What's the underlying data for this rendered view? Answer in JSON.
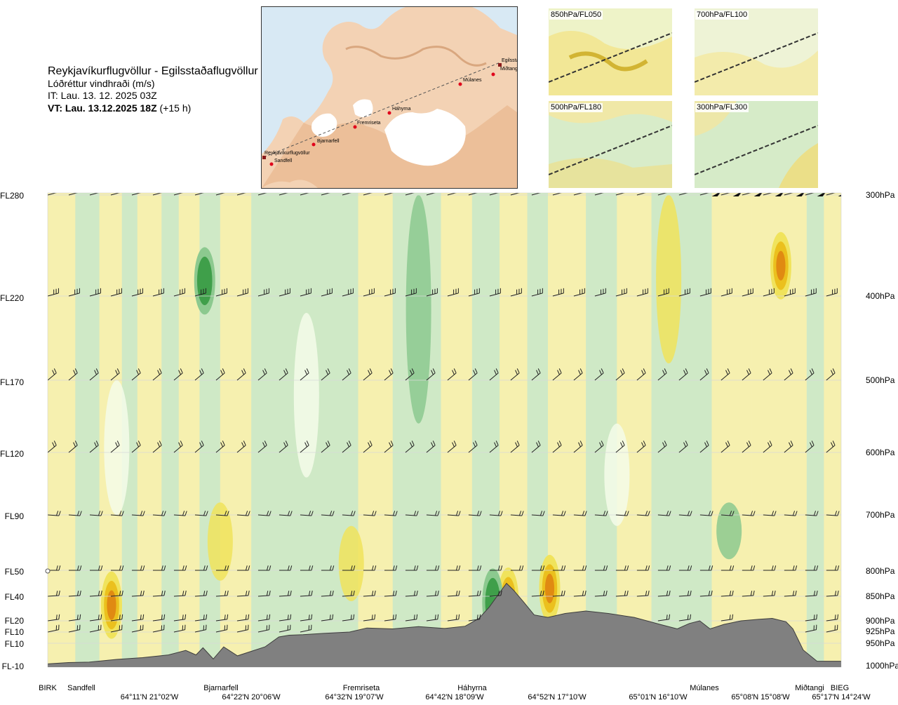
{
  "header": {
    "route": "Reykjavíkurflugvöllur - Egilsstaðaflugvöllur",
    "variable": "Lóðréttur vindhraði (m/s)",
    "issue_time": "IT: Lau. 13. 12. 2025 03Z",
    "valid_prefix": "VT: Lau. 13.12.2025 18Z",
    "valid_suffix": " (+15 h)"
  },
  "route_map": {
    "points": [
      {
        "name": "Reykjavíkurflugvöllur"
      },
      {
        "name": "Sandfell"
      },
      {
        "name": "Bjarnarfell"
      },
      {
        "name": "Fremriseta"
      },
      {
        "name": "Háhyrna"
      },
      {
        "name": "Múlanes"
      },
      {
        "name": "Egilsstaðir"
      },
      {
        "name": "Miðtangi"
      }
    ]
  },
  "level_panels": [
    {
      "label": "850hPa/FL050"
    },
    {
      "label": "700hPa/FL100"
    },
    {
      "label": "500hPa/FL180"
    },
    {
      "label": "300hPa/FL300"
    }
  ],
  "chart_data": {
    "type": "heatmap",
    "title": "Lóðréttur vindhraði (m/s)",
    "xlabel": "",
    "ylabel": "",
    "flight_levels": [
      "FL280",
      "FL220",
      "FL170",
      "FL120",
      "FL90",
      "FL50",
      "FL40",
      "FL20",
      "FL10",
      "FL10",
      "FL-10"
    ],
    "pressure_levels": [
      "300hPa",
      "400hPa",
      "500hPa",
      "600hPa",
      "700hPa",
      "800hPa",
      "850hPa",
      "900hPa",
      "925hPa",
      "950hPa",
      "1000hPa"
    ],
    "pressure_hpa": [
      300,
      400,
      500,
      600,
      700,
      800,
      850,
      900,
      925,
      950,
      1000
    ],
    "x_range_km": [
      0,
      460
    ],
    "locations": [
      {
        "name": "BIRK",
        "km": 0
      },
      {
        "name": "Sandfell",
        "km": 20
      },
      {
        "name": "Bjarnarfell",
        "km": 96
      },
      {
        "name": "Fremriseta",
        "km": 182
      },
      {
        "name": "Háhyrna",
        "km": 264
      },
      {
        "name": "Múlanes",
        "km": 395
      },
      {
        "name": "Miðtangi",
        "km": 443
      },
      {
        "name": "BIEG",
        "km": 458
      }
    ],
    "coordinates": [
      {
        "label": "64°11'N 21°02'W",
        "km": 60
      },
      {
        "label": "64°22'N 20°06'W",
        "km": 121
      },
      {
        "label": "64°32'N 19°07'W",
        "km": 181
      },
      {
        "label": "64°42'N 18°09'W",
        "km": 241
      },
      {
        "label": "64°52'N 17°10'W",
        "km": 302
      },
      {
        "label": "65°01'N 16°10'W",
        "km": 362
      },
      {
        "label": "65°08'N 15°08'W",
        "km": 423
      },
      {
        "label": "65°17'N 14°24'W",
        "km": 460
      }
    ],
    "terrain_profile": {
      "km": [
        0,
        12,
        24,
        40,
        55,
        70,
        80,
        86,
        90,
        96,
        102,
        110,
        118,
        126,
        134,
        140,
        148,
        160,
        175,
        185,
        200,
        215,
        230,
        242,
        250,
        256,
        262,
        266,
        270,
        276,
        282,
        290,
        300,
        312,
        325,
        340,
        355,
        365,
        372,
        378,
        384,
        392,
        402,
        412,
        420,
        428,
        432,
        438,
        446,
        460
      ],
      "elevation_hpa": [
        996,
        993,
        992,
        986,
        982,
        976,
        966,
        976,
        960,
        985,
        958,
        978,
        968,
        958,
        936,
        932,
        931,
        928,
        925,
        916,
        918,
        913,
        917,
        912,
        895,
        872,
        843,
        825,
        838,
        862,
        888,
        893,
        885,
        880,
        885,
        893,
        908,
        918,
        906,
        900,
        918,
        908,
        900,
        897,
        895,
        902,
        918,
        965,
        990,
        990
      ]
    },
    "vertical_velocity_features": [
      {
        "km": 267,
        "hpa": 860,
        "value": 3.5,
        "sign": "up"
      },
      {
        "km": 258,
        "hpa": 862,
        "value": -3.0,
        "sign": "down"
      },
      {
        "km": 291,
        "hpa": 835,
        "value": 2.0,
        "sign": "up"
      },
      {
        "km": 37,
        "hpa": 868,
        "value": 1.5,
        "sign": "up"
      },
      {
        "km": 425,
        "hpa": 370,
        "value": 1.5,
        "sign": "up"
      },
      {
        "km": 91,
        "hpa": 385,
        "value": -1.0,
        "sign": "down"
      }
    ],
    "color_scale": [
      {
        "min": -3,
        "max": -1,
        "color": "#3f9f4a"
      },
      {
        "min": -1,
        "max": -0.5,
        "color": "#8cc98f"
      },
      {
        "min": -0.5,
        "max": -0.1,
        "color": "#cbe8c8"
      },
      {
        "min": -0.1,
        "max": 0.1,
        "color": "#f4fbe9"
      },
      {
        "min": 0.1,
        "max": 0.5,
        "color": "#f6efae"
      },
      {
        "min": 0.5,
        "max": 1,
        "color": "#f0e35c"
      },
      {
        "min": 1,
        "max": 2,
        "color": "#ebc01e"
      },
      {
        "min": 2,
        "max": 4,
        "color": "#e08a12"
      },
      {
        "min": 4,
        "max": 8,
        "color": "#b8522a"
      }
    ]
  }
}
